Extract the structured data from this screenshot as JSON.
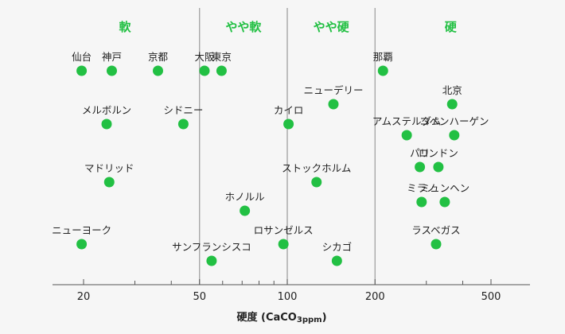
{
  "chart_data": {
    "type": "scatter",
    "x_scale": "log",
    "xlim": [
      15,
      660
    ],
    "xlabel": "硬度 (CaCO",
    "xlabel_sub": "3ppm",
    "xlabel_tail": ")",
    "major_ticks": [
      20,
      50,
      100,
      200,
      500
    ],
    "minor_ticks": [
      30,
      40,
      60,
      70,
      80,
      90,
      300,
      400
    ],
    "band_boundaries": [
      50,
      100,
      200
    ],
    "bands": [
      {
        "label": "軟",
        "from": 15,
        "to": 50
      },
      {
        "label": "やや軟",
        "from": 50,
        "to": 100
      },
      {
        "label": "やや硬",
        "from": 100,
        "to": 200
      },
      {
        "label": "硬",
        "from": 200,
        "to": 660
      }
    ],
    "point_color": "#22c043",
    "band_label_color": "#22c043",
    "points": [
      {
        "city": "仙台",
        "hardness": 19.7,
        "row": 1
      },
      {
        "city": "神戸",
        "hardness": 25,
        "row": 1
      },
      {
        "city": "京都",
        "hardness": 36,
        "row": 1
      },
      {
        "city": "大阪",
        "hardness": 52,
        "row": 1
      },
      {
        "city": "東京",
        "hardness": 59.5,
        "row": 1
      },
      {
        "city": "那覇",
        "hardness": 213,
        "row": 1
      },
      {
        "city": "ニューデリー",
        "hardness": 144,
        "row": 2
      },
      {
        "city": "北京",
        "hardness": 368,
        "row": 2
      },
      {
        "city": "メルボルン",
        "hardness": 24,
        "row": 3
      },
      {
        "city": "シドニー",
        "hardness": 44,
        "row": 3
      },
      {
        "city": "カイロ",
        "hardness": 101,
        "row": 3
      },
      {
        "city": "アムステルダム",
        "hardness": 257,
        "row": 4
      },
      {
        "city": "コペンハーゲン",
        "hardness": 374,
        "row": 4
      },
      {
        "city": "パリ",
        "hardness": 285,
        "row": 5
      },
      {
        "city": "ロンドン",
        "hardness": 330,
        "row": 5
      },
      {
        "city": "マドリッド",
        "hardness": 24.5,
        "row": 6
      },
      {
        "city": "ストックホルム",
        "hardness": 126,
        "row": 6
      },
      {
        "city": "ミラノ",
        "hardness": 289,
        "row": 7
      },
      {
        "city": "ミュンヘン",
        "hardness": 347,
        "row": 7
      },
      {
        "city": "ホノルル",
        "hardness": 71.5,
        "row": 8
      },
      {
        "city": "ニューヨーク",
        "hardness": 19.7,
        "row": 9
      },
      {
        "city": "ラスベガス",
        "hardness": 324,
        "row": 9
      },
      {
        "city": "ロサンゼルス",
        "hardness": 97,
        "row": 9
      },
      {
        "city": "サンフランシスコ",
        "hardness": 55,
        "row": 10
      },
      {
        "city": "シカゴ",
        "hardness": 148,
        "row": 10
      }
    ]
  }
}
